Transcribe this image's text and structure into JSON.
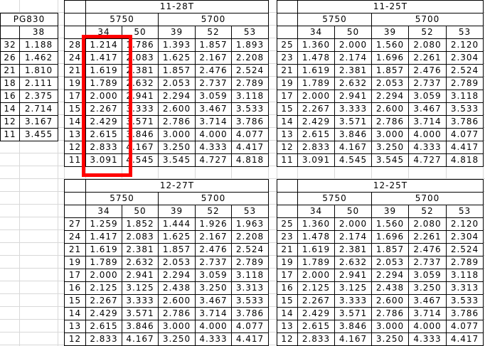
{
  "colors": {
    "header_fill": "#CCFFFF",
    "pink_highlight": "#FF99CC",
    "orange_highlight": "#FFC000",
    "red_box_border": "#FF0000",
    "gridline": "#D8D8D8",
    "cell_border": "#000000"
  },
  "pg_table": {
    "title": "PG830",
    "col_header": "38",
    "rows": [
      {
        "label": "32",
        "value": "1.188",
        "highlight": "pink"
      },
      {
        "label": "26",
        "value": "1.462"
      },
      {
        "label": "21",
        "value": "1.810"
      },
      {
        "label": "18",
        "value": "2.111"
      },
      {
        "label": "16",
        "value": "2.375"
      },
      {
        "label": "14",
        "value": "2.714",
        "highlight": "orange"
      },
      {
        "label": "12",
        "value": "3.167"
      },
      {
        "label": "11",
        "value": "3.455"
      }
    ]
  },
  "ratio_tables": [
    {
      "id": "11-28T",
      "title": "11-28T",
      "group_headers": [
        "5750",
        "5700"
      ],
      "col_headers": [
        "34",
        "50",
        "39",
        "52",
        "53"
      ],
      "red_box_col_header": "34",
      "rows": [
        {
          "label": "28",
          "values": [
            "1.214",
            "1.786",
            "1.393",
            "1.857",
            "1.893"
          ],
          "highlights": {
            "0": "pink"
          }
        },
        {
          "label": "24",
          "values": [
            "1.417",
            "2.083",
            "1.625",
            "2.167",
            "2.208"
          ]
        },
        {
          "label": "21",
          "values": [
            "1.619",
            "2.381",
            "1.857",
            "2.476",
            "2.524"
          ]
        },
        {
          "label": "19",
          "values": [
            "1.789",
            "2.632",
            "2.053",
            "2.737",
            "2.789"
          ]
        },
        {
          "label": "17",
          "values": [
            "2.000",
            "2.941",
            "2.294",
            "3.059",
            "3.118"
          ]
        },
        {
          "label": "15",
          "values": [
            "2.267",
            "3.333",
            "2.600",
            "3.467",
            "3.533"
          ]
        },
        {
          "label": "14",
          "values": [
            "2.429",
            "3.571",
            "2.786",
            "3.714",
            "3.786"
          ]
        },
        {
          "label": "13",
          "values": [
            "2.615",
            "3.846",
            "3.000",
            "4.000",
            "4.077"
          ]
        },
        {
          "label": "12",
          "values": [
            "2.833",
            "4.167",
            "3.250",
            "4.333",
            "4.417"
          ],
          "highlights": {
            "0": "orange"
          }
        },
        {
          "label": "11",
          "values": [
            "3.091",
            "4.545",
            "3.545",
            "4.727",
            "4.818"
          ],
          "highlights": {
            "0": "orange"
          }
        }
      ]
    },
    {
      "id": "11-25T",
      "title": "11-25T",
      "group_headers": [
        "5750",
        "5700"
      ],
      "col_headers": [
        "34",
        "50",
        "39",
        "52",
        "53"
      ],
      "rows": [
        {
          "label": "25",
          "values": [
            "1.360",
            "2.000",
            "1.560",
            "2.080",
            "2.120"
          ]
        },
        {
          "label": "23",
          "values": [
            "1.478",
            "2.174",
            "1.696",
            "2.261",
            "2.304"
          ]
        },
        {
          "label": "21",
          "values": [
            "1.619",
            "2.381",
            "1.857",
            "2.476",
            "2.524"
          ]
        },
        {
          "label": "19",
          "values": [
            "1.789",
            "2.632",
            "2.053",
            "2.737",
            "2.789"
          ]
        },
        {
          "label": "17",
          "values": [
            "2.000",
            "2.941",
            "2.294",
            "3.059",
            "3.118"
          ]
        },
        {
          "label": "15",
          "values": [
            "2.267",
            "3.333",
            "2.600",
            "3.467",
            "3.533"
          ]
        },
        {
          "label": "14",
          "values": [
            "2.429",
            "3.571",
            "2.786",
            "3.714",
            "3.786"
          ]
        },
        {
          "label": "13",
          "values": [
            "2.615",
            "3.846",
            "3.000",
            "4.000",
            "4.077"
          ]
        },
        {
          "label": "12",
          "values": [
            "2.833",
            "4.167",
            "3.250",
            "4.333",
            "4.417"
          ]
        },
        {
          "label": "11",
          "values": [
            "3.091",
            "4.545",
            "3.545",
            "4.727",
            "4.818"
          ]
        }
      ]
    },
    {
      "id": "12-27T",
      "title": "12-27T",
      "group_headers": [
        "5750",
        "5700"
      ],
      "col_headers": [
        "34",
        "50",
        "39",
        "52",
        "53"
      ],
      "rows": [
        {
          "label": "27",
          "values": [
            "1.259",
            "1.852",
            "1.444",
            "1.926",
            "1.963"
          ],
          "highlights": {
            "0": "pink"
          }
        },
        {
          "label": "24",
          "values": [
            "1.417",
            "2.083",
            "1.625",
            "2.167",
            "2.208"
          ]
        },
        {
          "label": "21",
          "values": [
            "1.619",
            "2.381",
            "1.857",
            "2.476",
            "2.524"
          ]
        },
        {
          "label": "19",
          "values": [
            "1.789",
            "2.632",
            "2.053",
            "2.737",
            "2.789"
          ]
        },
        {
          "label": "17",
          "values": [
            "2.000",
            "2.941",
            "2.294",
            "3.059",
            "3.118"
          ]
        },
        {
          "label": "16",
          "values": [
            "2.125",
            "3.125",
            "2.438",
            "3.250",
            "3.313"
          ]
        },
        {
          "label": "15",
          "values": [
            "2.267",
            "3.333",
            "2.600",
            "3.467",
            "3.533"
          ]
        },
        {
          "label": "14",
          "values": [
            "2.429",
            "3.571",
            "2.786",
            "3.714",
            "3.786"
          ]
        },
        {
          "label": "13",
          "values": [
            "2.615",
            "3.846",
            "3.000",
            "4.000",
            "4.077"
          ]
        },
        {
          "label": "12",
          "values": [
            "2.833",
            "4.167",
            "3.250",
            "4.333",
            "4.417"
          ],
          "highlights": {
            "0": "orange"
          }
        }
      ]
    },
    {
      "id": "12-25T",
      "title": "12-25T",
      "group_headers": [
        "5750",
        "5700"
      ],
      "col_headers": [
        "34",
        "50",
        "39",
        "52",
        "53"
      ],
      "rows": [
        {
          "label": "25",
          "values": [
            "1.360",
            "2.000",
            "1.560",
            "2.080",
            "2.120"
          ]
        },
        {
          "label": "23",
          "values": [
            "1.478",
            "2.174",
            "1.696",
            "2.261",
            "2.304"
          ]
        },
        {
          "label": "21",
          "values": [
            "1.619",
            "2.381",
            "1.857",
            "2.476",
            "2.524"
          ]
        },
        {
          "label": "19",
          "values": [
            "1.789",
            "2.632",
            "2.053",
            "2.737",
            "2.789"
          ]
        },
        {
          "label": "17",
          "values": [
            "2.000",
            "2.941",
            "2.294",
            "3.059",
            "3.118"
          ]
        },
        {
          "label": "16",
          "values": [
            "2.125",
            "3.125",
            "2.438",
            "3.250",
            "3.313"
          ]
        },
        {
          "label": "15",
          "values": [
            "2.267",
            "3.333",
            "2.600",
            "3.467",
            "3.533"
          ]
        },
        {
          "label": "14",
          "values": [
            "2.429",
            "3.571",
            "2.786",
            "3.714",
            "3.786"
          ]
        },
        {
          "label": "13",
          "values": [
            "2.615",
            "3.846",
            "3.000",
            "4.000",
            "4.077"
          ]
        },
        {
          "label": "12",
          "values": [
            "2.833",
            "4.167",
            "3.250",
            "4.333",
            "4.417"
          ]
        }
      ]
    }
  ]
}
